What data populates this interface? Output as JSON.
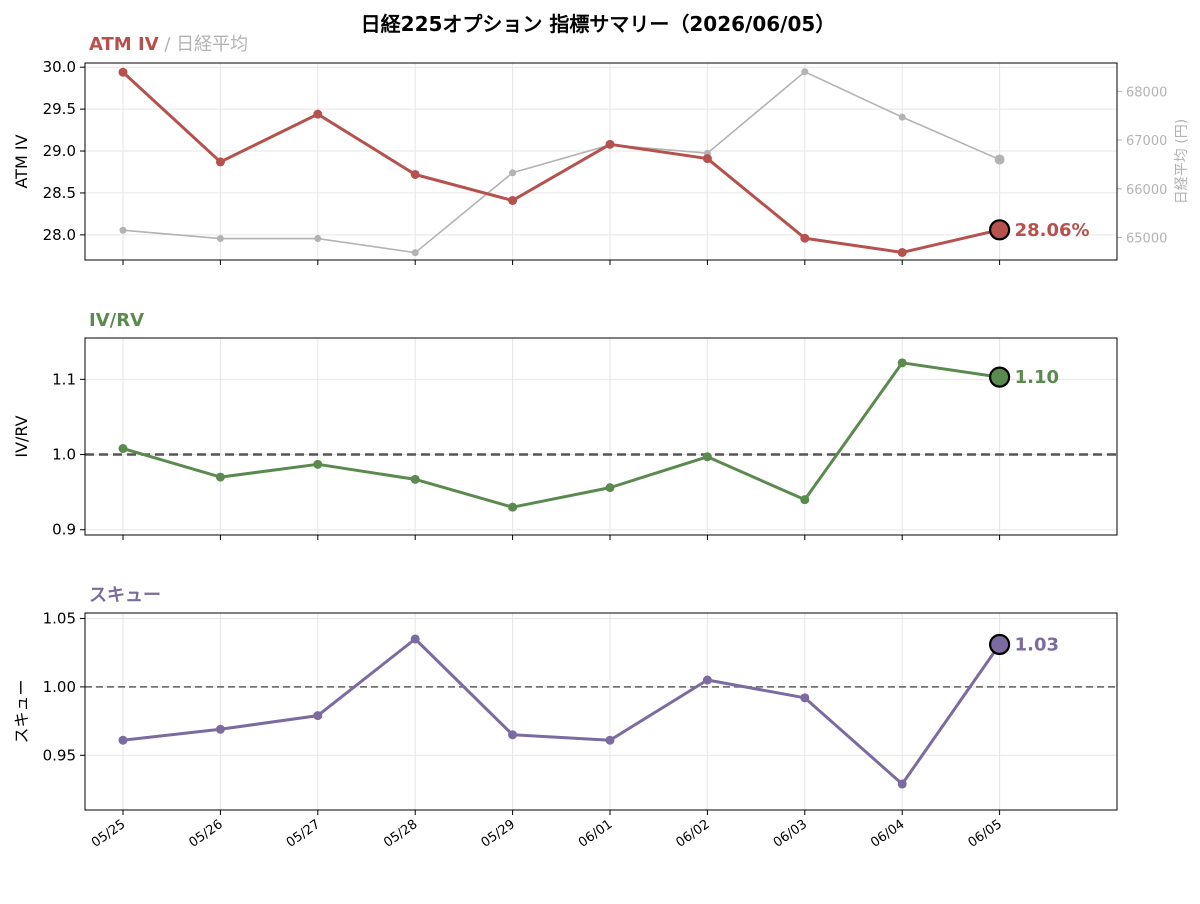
{
  "figure_title": "日経225オプション 指標サマリー（2026/06/05）",
  "colors": {
    "atm_iv": "#b5524d",
    "nikkei": "#b3b3b3",
    "iv_rv": "#5b8a4f",
    "skew": "#7b6ba0",
    "reference_line": "#555555",
    "grid": "#e6e6e6"
  },
  "chart_data": [
    {
      "type": "line",
      "panel_title": {
        "primary": "ATM IV",
        "separator": " / ",
        "secondary": "日経平均"
      },
      "x": [
        "05/25",
        "05/26",
        "05/27",
        "05/28",
        "05/29",
        "06/01",
        "06/02",
        "06/03",
        "06/04",
        "06/05"
      ],
      "ylabel": "ATM IV",
      "y2label": "日経平均 (円)",
      "ylim": [
        27.7,
        30.05
      ],
      "y2lim": [
        64540,
        68580
      ],
      "yticks": [
        28.0,
        28.5,
        29.0,
        29.5,
        30.0
      ],
      "ytick_labels": [
        "28.0",
        "28.5",
        "29.0",
        "29.5",
        "30.0"
      ],
      "y2ticks": [
        65000,
        66000,
        67000,
        68000
      ],
      "y2tick_labels": [
        "65000",
        "66000",
        "67000",
        "68000"
      ],
      "grid": true,
      "series": [
        {
          "name": "ATM IV",
          "axis": "left",
          "values": [
            29.94,
            28.87,
            29.44,
            28.72,
            28.41,
            29.08,
            28.91,
            27.96,
            27.79,
            28.06
          ]
        },
        {
          "name": "日経平均",
          "axis": "right",
          "values": [
            65150,
            64980,
            64980,
            64690,
            66330,
            66900,
            66730,
            68400,
            67470,
            66600
          ]
        }
      ],
      "last_value_label": "28.06%"
    },
    {
      "type": "line",
      "panel_title": {
        "primary": "IV/RV"
      },
      "x": [
        "05/25",
        "05/26",
        "05/27",
        "05/28",
        "05/29",
        "06/01",
        "06/02",
        "06/03",
        "06/04",
        "06/05"
      ],
      "ylabel": "IV/RV",
      "ylim": [
        0.893,
        1.155
      ],
      "yticks": [
        0.9,
        1.0,
        1.1
      ],
      "ytick_labels": [
        "0.9",
        "1.0",
        "1.1"
      ],
      "reference_line": 1.0,
      "grid": true,
      "series": [
        {
          "values": [
            1.008,
            0.97,
            0.987,
            0.967,
            0.93,
            0.956,
            0.997,
            0.94,
            1.122,
            1.103
          ]
        }
      ],
      "last_value_label": "1.10"
    },
    {
      "type": "line",
      "panel_title": {
        "primary": "スキュー"
      },
      "x": [
        "05/25",
        "05/26",
        "05/27",
        "05/28",
        "05/29",
        "06/01",
        "06/02",
        "06/03",
        "06/04",
        "06/05"
      ],
      "xtick_labels": [
        "05/25",
        "05/26",
        "05/27",
        "05/28",
        "05/29",
        "06/01",
        "06/02",
        "06/03",
        "06/04",
        "06/05"
      ],
      "ylabel": "スキュー",
      "ylim": [
        0.91,
        1.054
      ],
      "yticks": [
        0.95,
        1.0,
        1.05
      ],
      "ytick_labels": [
        "0.95",
        "1.00",
        "1.05"
      ],
      "reference_line": 1.0,
      "grid": true,
      "series": [
        {
          "values": [
            0.961,
            0.969,
            0.979,
            1.035,
            0.965,
            0.961,
            1.005,
            0.992,
            0.929,
            1.031
          ]
        }
      ],
      "last_value_label": "1.03"
    }
  ]
}
